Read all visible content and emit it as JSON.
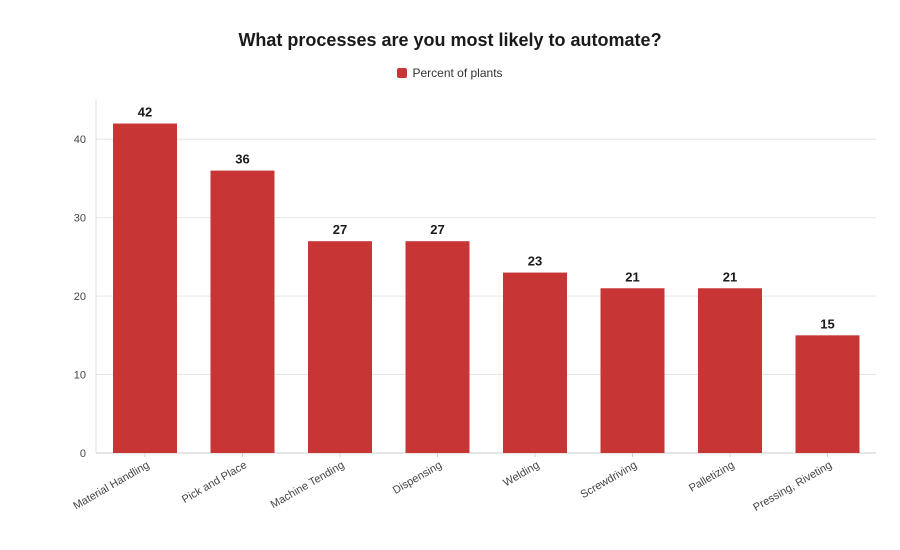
{
  "chart_data": {
    "type": "bar",
    "title": "What processes are you most likely to automate?",
    "categories": [
      "Material Handling",
      "Pick and Place",
      "Machine Tending",
      "Dispensing",
      "Welding",
      "Screwdriving",
      "Palletizing",
      "Pressing, Riveting"
    ],
    "series": [
      {
        "name": "Percent of plants",
        "values": [
          42,
          36,
          27,
          27,
          23,
          21,
          21,
          15
        ],
        "color": "#c73535"
      }
    ],
    "xlabel": "",
    "ylabel": "",
    "ylim": [
      0,
      45
    ],
    "yticks": [
      0,
      10,
      20,
      30,
      40
    ],
    "grid": true,
    "legend_position": "top-center",
    "data_labels": true
  }
}
